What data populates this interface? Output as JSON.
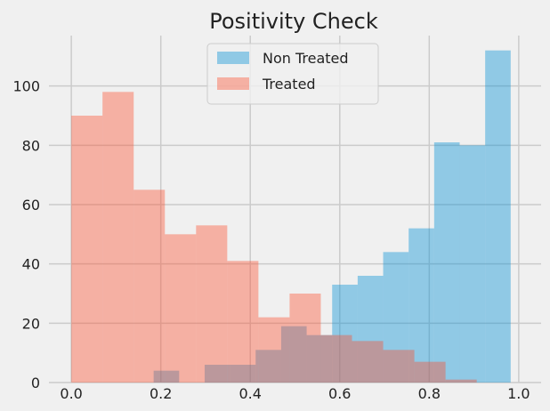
{
  "chart_data": {
    "type": "histogram",
    "title": "Positivity Check",
    "xlabel": "",
    "ylabel": "",
    "xlim": [
      -0.05,
      1.05
    ],
    "ylim": [
      0,
      117
    ],
    "x_ticks": [
      0.0,
      0.2,
      0.4,
      0.6,
      0.8,
      1.0
    ],
    "x_tick_labels": [
      "0.0",
      "0.2",
      "0.4",
      "0.6",
      "0.8",
      "1.0"
    ],
    "y_ticks": [
      0,
      20,
      40,
      60,
      80,
      100
    ],
    "y_tick_labels": [
      "0",
      "20",
      "40",
      "60",
      "80",
      "100"
    ],
    "grid": true,
    "legend_position": "top-center",
    "series": [
      {
        "name": "Non Treated",
        "color": "#008fd5",
        "alpha": 0.4,
        "bins": [
          {
            "x0": 0.184,
            "x1": 0.241,
            "count": 4
          },
          {
            "x0": 0.241,
            "x1": 0.298,
            "count": 0
          },
          {
            "x0": 0.298,
            "x1": 0.355,
            "count": 6
          },
          {
            "x0": 0.355,
            "x1": 0.412,
            "count": 6
          },
          {
            "x0": 0.412,
            "x1": 0.469,
            "count": 11
          },
          {
            "x0": 0.469,
            "x1": 0.526,
            "count": 19
          },
          {
            "x0": 0.526,
            "x1": 0.583,
            "count": 16
          },
          {
            "x0": 0.583,
            "x1": 0.64,
            "count": 33
          },
          {
            "x0": 0.64,
            "x1": 0.697,
            "count": 36
          },
          {
            "x0": 0.697,
            "x1": 0.754,
            "count": 44
          },
          {
            "x0": 0.754,
            "x1": 0.811,
            "count": 52
          },
          {
            "x0": 0.811,
            "x1": 0.868,
            "count": 81
          },
          {
            "x0": 0.868,
            "x1": 0.925,
            "count": 80
          },
          {
            "x0": 0.925,
            "x1": 0.982,
            "count": 112
          }
        ]
      },
      {
        "name": "Treated",
        "color": "#fc4f30",
        "alpha": 0.4,
        "bins": [
          {
            "x0": 0.0,
            "x1": 0.0697,
            "count": 90
          },
          {
            "x0": 0.0697,
            "x1": 0.1394,
            "count": 98
          },
          {
            "x0": 0.1394,
            "x1": 0.2091,
            "count": 65
          },
          {
            "x0": 0.2091,
            "x1": 0.2788,
            "count": 50
          },
          {
            "x0": 0.2788,
            "x1": 0.3485,
            "count": 53
          },
          {
            "x0": 0.3485,
            "x1": 0.4182,
            "count": 41
          },
          {
            "x0": 0.4182,
            "x1": 0.4879,
            "count": 22
          },
          {
            "x0": 0.4879,
            "x1": 0.5576,
            "count": 30
          },
          {
            "x0": 0.5576,
            "x1": 0.6273,
            "count": 16
          },
          {
            "x0": 0.6273,
            "x1": 0.697,
            "count": 14
          },
          {
            "x0": 0.697,
            "x1": 0.7667,
            "count": 11
          },
          {
            "x0": 0.7667,
            "x1": 0.8364,
            "count": 7
          },
          {
            "x0": 0.8364,
            "x1": 0.9061,
            "count": 1
          },
          {
            "x0": 0.9061,
            "x1": 0.9758,
            "count": 0
          }
        ]
      }
    ]
  }
}
